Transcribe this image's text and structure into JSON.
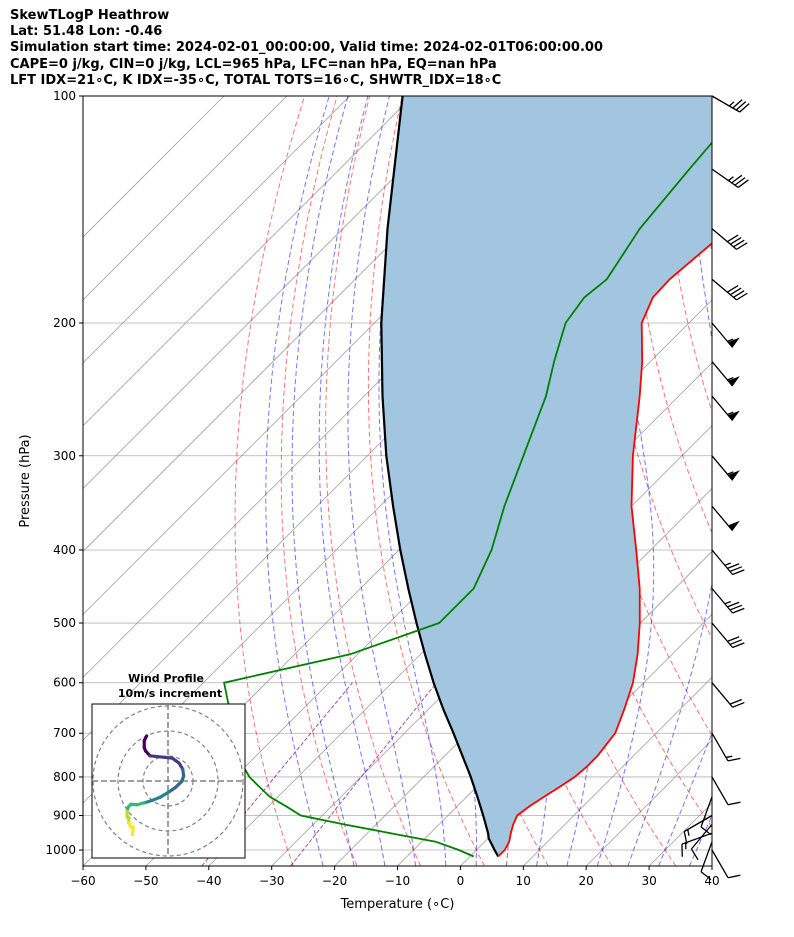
{
  "title_lines": [
    "SkewTLogP Heathrow",
    "Lat: 51.48   Lon: -0.46",
    "Simulation start time: 2024-02-01_00:00:00, Valid time: 2024-02-01T06:00:00.00",
    "CAPE=0 j/kg, CIN=0 j/kg, LCL=965 hPa, LFC=nan hPa, EQ=nan hPa",
    "LFT IDX=21∘C, K IDX=-35∘C, TOTAL TOTS=16∘C, SHWTR_IDX=18∘C"
  ],
  "chart_data": {
    "type": "line",
    "subtype": "skew-t log-p",
    "xlabel": "Temperature (∘C)",
    "ylabel": "Pressure (hPa)",
    "xlim": [
      -60,
      40
    ],
    "ylim": [
      1050,
      100
    ],
    "y_scale": "log",
    "grid": true,
    "x_ticks": [
      "−60",
      "−50",
      "−40",
      "−30",
      "−20",
      "−10",
      "0",
      "10",
      "20",
      "30",
      "40"
    ],
    "x_tick_values": [
      -60,
      -50,
      -40,
      -30,
      -20,
      -10,
      0,
      10,
      20,
      30,
      40
    ],
    "y_ticks": [
      "1000",
      "900",
      "800",
      "700",
      "600",
      "500",
      "400",
      "300",
      "200",
      "100"
    ],
    "y_tick_values": [
      1000,
      900,
      800,
      700,
      600,
      500,
      400,
      300,
      200,
      100
    ],
    "colors": {
      "temperature": "#ff0000",
      "dewpoint": "#008000",
      "parcel": "#000000",
      "shade": "#a3c6e0",
      "dry_adiabats": "#ff0000",
      "moist_adiabats": "#0000ff",
      "mixing_ratio": "#800080",
      "isotherms": "#808080"
    },
    "pressure": [
      1020,
      1000,
      975,
      950,
      925,
      900,
      875,
      850,
      825,
      800,
      775,
      750,
      700,
      650,
      600,
      550,
      500,
      450,
      400,
      350,
      300,
      250,
      225,
      200,
      185,
      175,
      150,
      125,
      100
    ],
    "temperature": [
      4.5,
      4.5,
      3.9,
      2.8,
      1.8,
      1.0,
      1.5,
      2.3,
      3.2,
      4.0,
      4.3,
      4.3,
      3.5,
      1.1,
      -1.7,
      -5.5,
      -10.1,
      -15.6,
      -22.3,
      -30.0,
      -37.8,
      -46.2,
      -51.3,
      -57.5,
      -59.8,
      -60.0,
      -58.6,
      -60.4,
      -62.7
    ],
    "dewpoint": [
      0.6,
      -2.8,
      -7.8,
      -16.3,
      -25.0,
      -33.4,
      -37.2,
      -41.3,
      -44.5,
      -47.7,
      -50.3,
      -52.3,
      -55.8,
      -61.7,
      -66.7,
      -51.2,
      -42.0,
      -42.0,
      -45.3,
      -50.2,
      -55.2,
      -61.1,
      -65.3,
      -69.6,
      -70.7,
      -70.0,
      -72.8,
      -74.4,
      -76.1
    ],
    "parcel_profile": {
      "pressure": [
        1020,
        1000,
        965,
        950,
        900,
        850,
        800,
        750,
        700,
        650,
        600,
        550,
        500,
        450,
        400,
        350,
        300,
        250,
        200,
        150,
        100
      ],
      "temperature": [
        4.5,
        2.9,
        0.1,
        -0.8,
        -4.4,
        -8.3,
        -12.5,
        -17.2,
        -22.2,
        -27.7,
        -33.4,
        -39.3,
        -45.6,
        -52.4,
        -59.8,
        -67.9,
        -77.0,
        -87.1,
        -98.9,
        -112.9,
        -131.6
      ]
    },
    "wind_barbs": [
      {
        "pressure": 100,
        "speed_kt": 35,
        "direction_deg": 300
      },
      {
        "pressure": 125,
        "speed_kt": 35,
        "direction_deg": 305
      },
      {
        "pressure": 150,
        "speed_kt": 40,
        "direction_deg": 310
      },
      {
        "pressure": 175,
        "speed_kt": 40,
        "direction_deg": 310
      },
      {
        "pressure": 200,
        "speed_kt": 55,
        "direction_deg": 320
      },
      {
        "pressure": 225,
        "speed_kt": 55,
        "direction_deg": 320
      },
      {
        "pressure": 250,
        "speed_kt": 55,
        "direction_deg": 320
      },
      {
        "pressure": 300,
        "speed_kt": 55,
        "direction_deg": 320
      },
      {
        "pressure": 350,
        "speed_kt": 50,
        "direction_deg": 320
      },
      {
        "pressure": 400,
        "speed_kt": 35,
        "direction_deg": 320
      },
      {
        "pressure": 450,
        "speed_kt": 35,
        "direction_deg": 320
      },
      {
        "pressure": 500,
        "speed_kt": 30,
        "direction_deg": 320
      },
      {
        "pressure": 600,
        "speed_kt": 20,
        "direction_deg": 320
      },
      {
        "pressure": 700,
        "speed_kt": 15,
        "direction_deg": 330
      },
      {
        "pressure": 800,
        "speed_kt": 10,
        "direction_deg": 330
      },
      {
        "pressure": 850,
        "speed_kt": 10,
        "direction_deg": 20
      },
      {
        "pressure": 900,
        "speed_kt": 15,
        "direction_deg": 60
      },
      {
        "pressure": 925,
        "speed_kt": 10,
        "direction_deg": 40
      },
      {
        "pressure": 950,
        "speed_kt": 15,
        "direction_deg": 70
      },
      {
        "pressure": 975,
        "speed_kt": 10,
        "direction_deg": 20
      },
      {
        "pressure": 1000,
        "speed_kt": 10,
        "direction_deg": 330
      }
    ]
  },
  "inset": {
    "title_line1": "Wind Profile",
    "title_line2": "10m/s increment",
    "rings": 3,
    "hodograph_colors": [
      "#fde725",
      "#b5de2b",
      "#35b779",
      "#26828e",
      "#31688e",
      "#443983",
      "#440154"
    ],
    "hodograph": [
      [
        -4.5,
        -9.5
      ],
      [
        -5,
        -8.5
      ],
      [
        -5,
        -7
      ],
      [
        -4.7,
        -6.3
      ],
      [
        -3.8,
        -5.3
      ],
      [
        0.9,
        -4.8
      ],
      [
        2.3,
        -3.8
      ],
      [
        3.1,
        -2.5
      ],
      [
        3.3,
        -1
      ],
      [
        2.8,
        0.2
      ],
      [
        1.5,
        1.4
      ],
      [
        0.2,
        2.3
      ],
      [
        -1.6,
        3.4
      ],
      [
        -3.4,
        4.1
      ],
      [
        -5,
        4.6
      ],
      [
        -6.5,
        5
      ],
      [
        -7.8,
        4.9
      ],
      [
        -8.4,
        5.5
      ],
      [
        -8.6,
        6.4
      ],
      [
        -8.6,
        7.6
      ],
      [
        -8.2,
        7.8
      ],
      [
        -8.3,
        8.8
      ],
      [
        -7.8,
        9.7
      ],
      [
        -7.3,
        9.7
      ],
      [
        -7.5,
        11.3
      ]
    ]
  }
}
